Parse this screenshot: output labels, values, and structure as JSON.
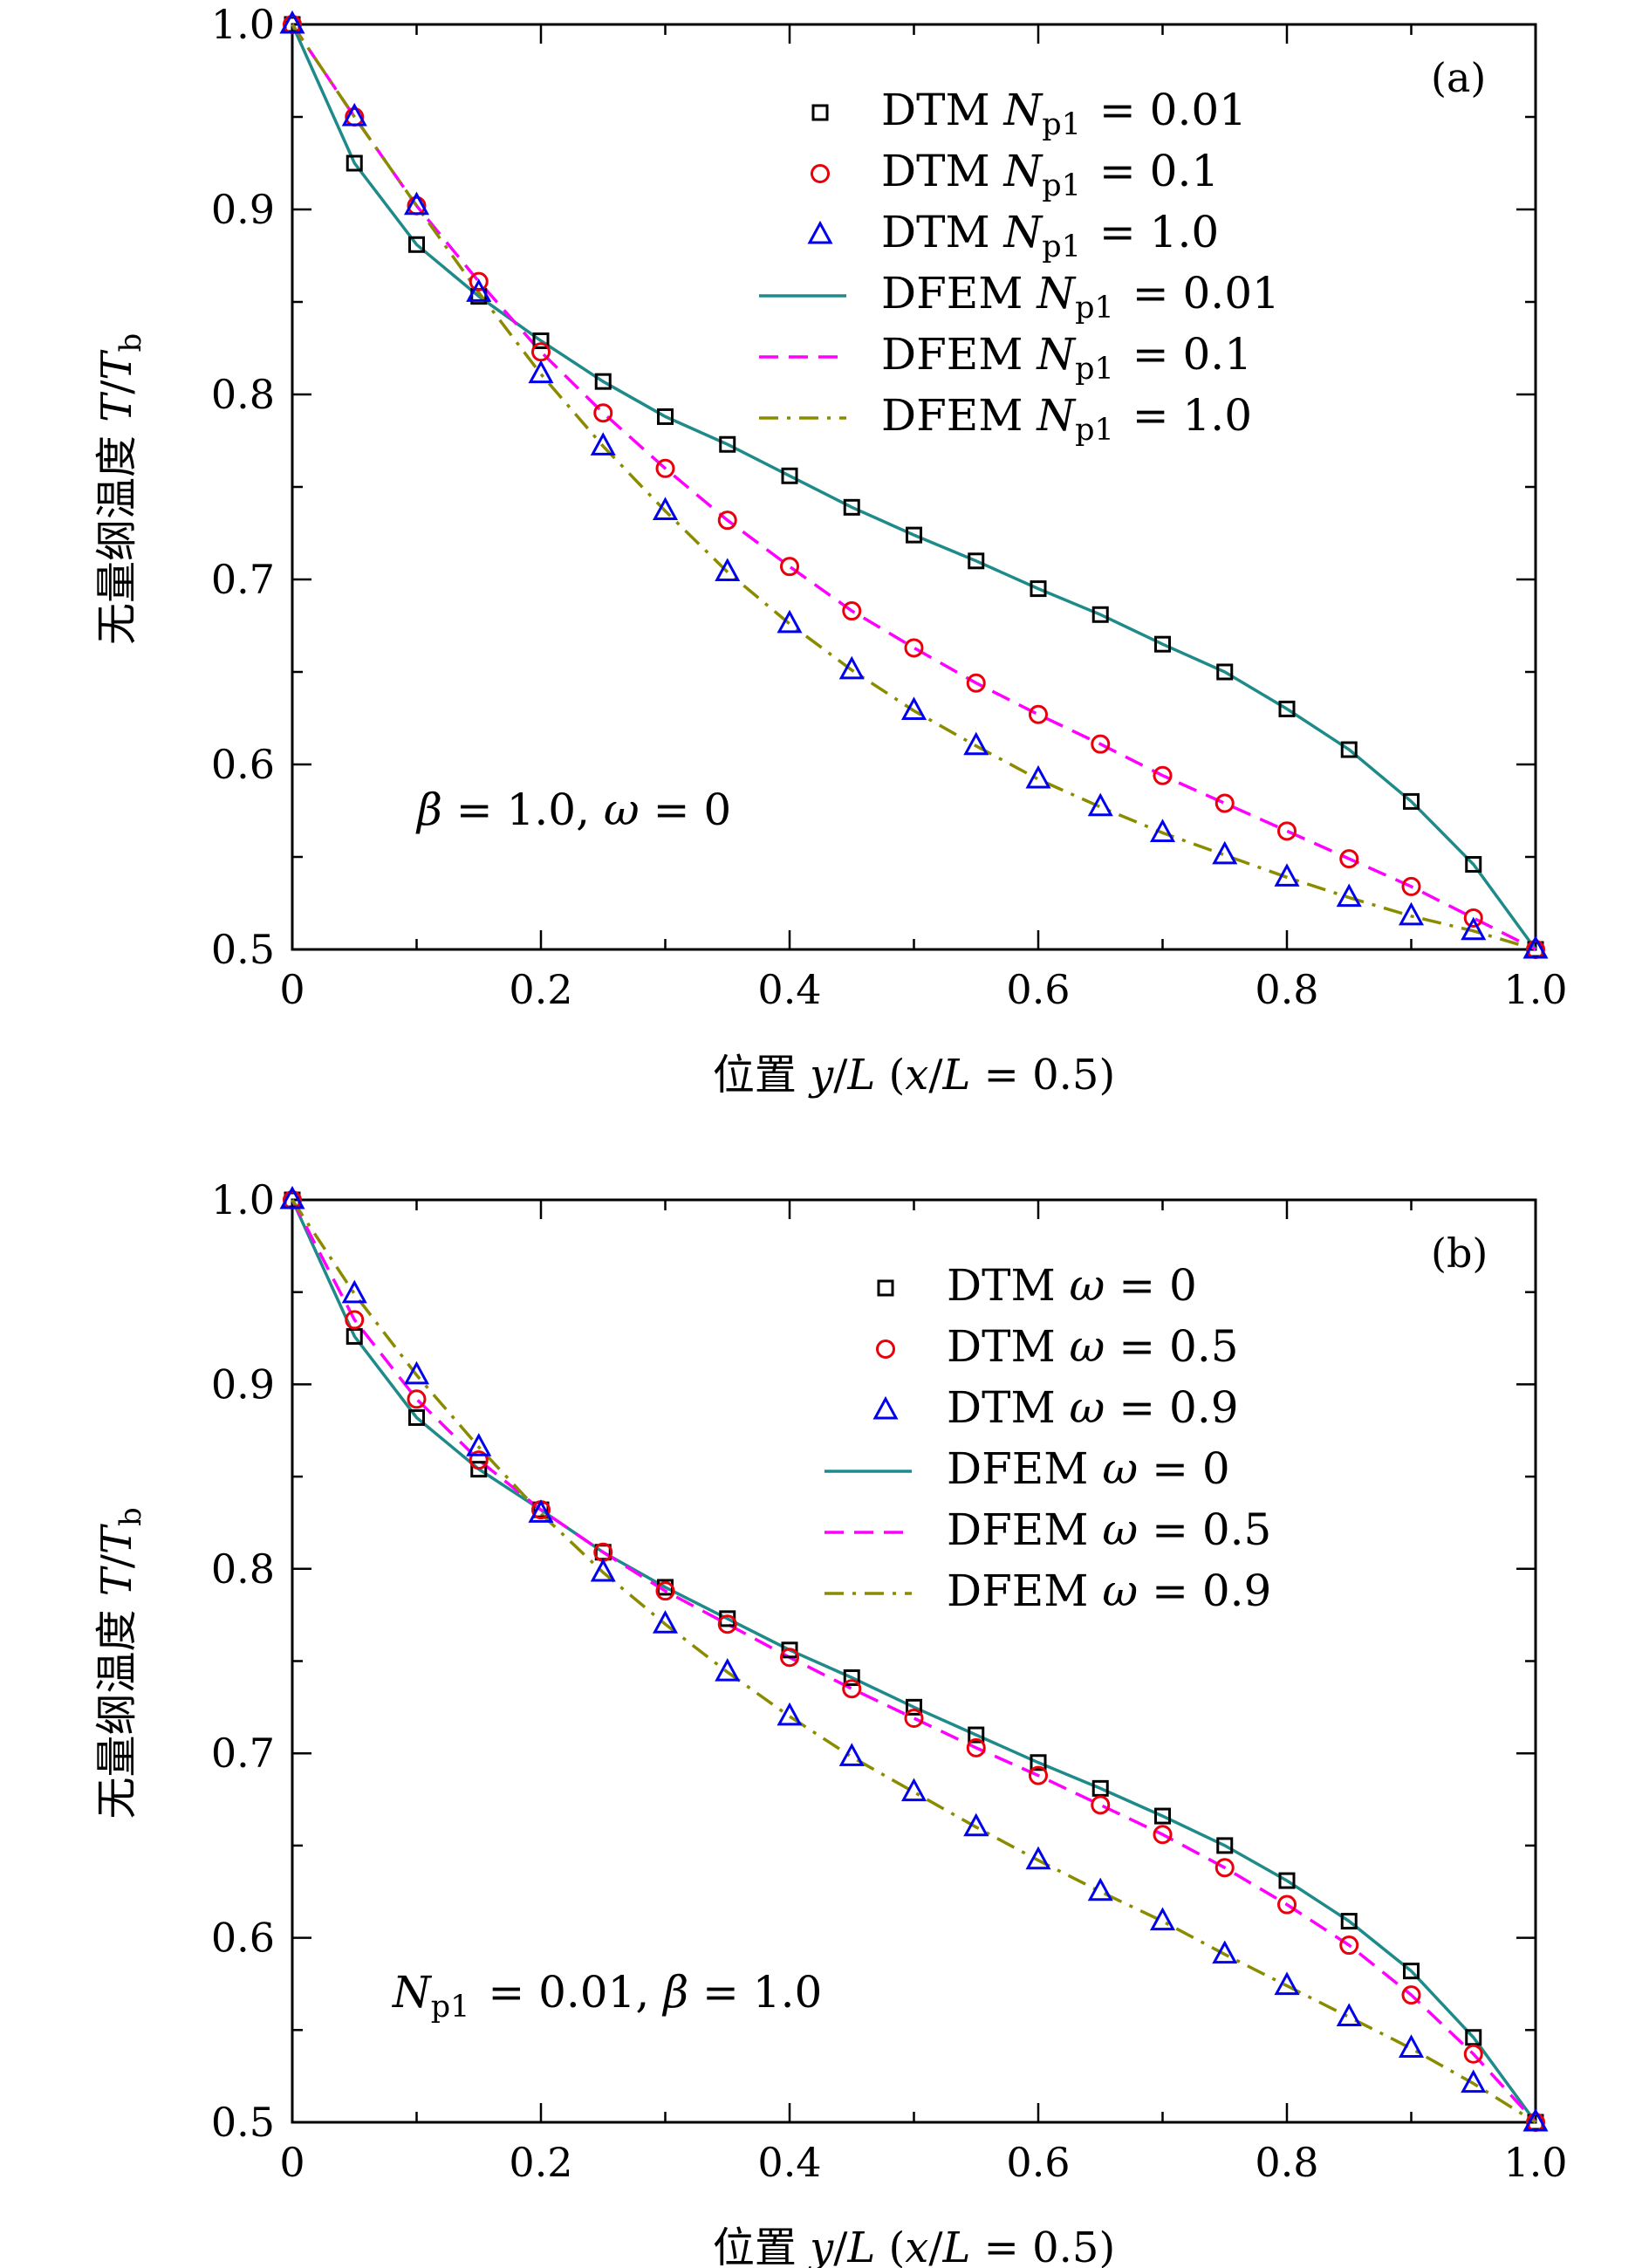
{
  "chart_data": [
    {
      "type": "line",
      "panel_label": "(a)",
      "xlabel": "位置 y/L (x/L = 0.5)",
      "ylabel": "无量纲温度 T/T_b",
      "xlim": [
        0,
        1.0
      ],
      "ylim": [
        0.5,
        1.0
      ],
      "xticks": [
        "0",
        "0.2",
        "0.4",
        "0.6",
        "0.8",
        "1.0"
      ],
      "yticks": [
        "0.5",
        "0.6",
        "0.7",
        "0.8",
        "0.9",
        "1.0"
      ],
      "annotation": "β = 1.0, ω = 0",
      "legend_position": "top-right",
      "series": [
        {
          "name": "DTM N_p1 = 0.01",
          "style": "marker",
          "marker": "square",
          "color": "#000000",
          "x": [
            0,
            0.05,
            0.1,
            0.15,
            0.2,
            0.25,
            0.3,
            0.35,
            0.4,
            0.45,
            0.5,
            0.55,
            0.6,
            0.65,
            0.7,
            0.75,
            0.8,
            0.85,
            0.9,
            0.95,
            1.0
          ],
          "y": [
            1.0,
            0.925,
            0.881,
            0.853,
            0.829,
            0.807,
            0.788,
            0.773,
            0.756,
            0.739,
            0.724,
            0.71,
            0.695,
            0.681,
            0.665,
            0.65,
            0.63,
            0.608,
            0.58,
            0.546,
            0.5
          ]
        },
        {
          "name": "DTM N_p1 = 0.1",
          "style": "marker",
          "marker": "circle",
          "color": "#e8000b",
          "x": [
            0,
            0.05,
            0.1,
            0.15,
            0.2,
            0.25,
            0.3,
            0.35,
            0.4,
            0.45,
            0.5,
            0.55,
            0.6,
            0.65,
            0.7,
            0.75,
            0.8,
            0.85,
            0.9,
            0.95,
            1.0
          ],
          "y": [
            1.0,
            0.95,
            0.902,
            0.861,
            0.823,
            0.79,
            0.76,
            0.732,
            0.707,
            0.683,
            0.663,
            0.644,
            0.627,
            0.611,
            0.594,
            0.579,
            0.564,
            0.549,
            0.534,
            0.517,
            0.5
          ]
        },
        {
          "name": "DTM N_p1 = 1.0",
          "style": "marker",
          "marker": "triangle",
          "color": "#0000ee",
          "x": [
            0,
            0.05,
            0.1,
            0.15,
            0.2,
            0.25,
            0.3,
            0.35,
            0.4,
            0.45,
            0.5,
            0.55,
            0.6,
            0.65,
            0.7,
            0.75,
            0.8,
            0.85,
            0.9,
            0.95,
            1.0
          ],
          "y": [
            1.0,
            0.95,
            0.902,
            0.855,
            0.811,
            0.772,
            0.737,
            0.704,
            0.676,
            0.651,
            0.629,
            0.61,
            0.592,
            0.577,
            0.563,
            0.551,
            0.539,
            0.528,
            0.518,
            0.51,
            0.5
          ]
        },
        {
          "name": "DFEM N_p1 = 0.01",
          "style": "solid",
          "color": "#1f8a8a",
          "x": [
            0,
            0.05,
            0.1,
            0.15,
            0.2,
            0.25,
            0.3,
            0.35,
            0.4,
            0.45,
            0.5,
            0.55,
            0.6,
            0.65,
            0.7,
            0.75,
            0.8,
            0.85,
            0.9,
            0.95,
            1.0
          ],
          "y": [
            1.0,
            0.925,
            0.881,
            0.853,
            0.829,
            0.807,
            0.788,
            0.773,
            0.756,
            0.739,
            0.724,
            0.71,
            0.695,
            0.681,
            0.665,
            0.65,
            0.63,
            0.608,
            0.58,
            0.546,
            0.5
          ]
        },
        {
          "name": "DFEM N_p1 = 0.1",
          "style": "dashed",
          "color": "#ff00ff",
          "x": [
            0,
            0.05,
            0.1,
            0.15,
            0.2,
            0.25,
            0.3,
            0.35,
            0.4,
            0.45,
            0.5,
            0.55,
            0.6,
            0.65,
            0.7,
            0.75,
            0.8,
            0.85,
            0.9,
            0.95,
            1.0
          ],
          "y": [
            1.0,
            0.95,
            0.902,
            0.861,
            0.823,
            0.79,
            0.76,
            0.732,
            0.707,
            0.683,
            0.663,
            0.644,
            0.627,
            0.611,
            0.594,
            0.579,
            0.564,
            0.549,
            0.534,
            0.517,
            0.5
          ]
        },
        {
          "name": "DFEM N_p1 = 1.0",
          "style": "dashdot",
          "color": "#8b8b00",
          "x": [
            0,
            0.05,
            0.1,
            0.15,
            0.2,
            0.25,
            0.3,
            0.35,
            0.4,
            0.45,
            0.5,
            0.55,
            0.6,
            0.65,
            0.7,
            0.75,
            0.8,
            0.85,
            0.9,
            0.95,
            1.0
          ],
          "y": [
            1.0,
            0.95,
            0.902,
            0.855,
            0.811,
            0.772,
            0.737,
            0.704,
            0.676,
            0.651,
            0.629,
            0.61,
            0.592,
            0.577,
            0.563,
            0.551,
            0.539,
            0.528,
            0.518,
            0.51,
            0.5
          ]
        }
      ]
    },
    {
      "type": "line",
      "panel_label": "(b)",
      "xlabel": "位置 y/L (x/L = 0.5)",
      "ylabel": "无量纲温度 T/T_b",
      "xlim": [
        0,
        1.0
      ],
      "ylim": [
        0.5,
        1.0
      ],
      "xticks": [
        "0",
        "0.2",
        "0.4",
        "0.6",
        "0.8",
        "1.0"
      ],
      "yticks": [
        "0.5",
        "0.6",
        "0.7",
        "0.8",
        "0.9",
        "1.0"
      ],
      "annotation": "N_p1 = 0.01, β = 1.0",
      "legend_position": "top-right",
      "series": [
        {
          "name": "DTM ω = 0",
          "style": "marker",
          "marker": "square",
          "color": "#000000",
          "x": [
            0,
            0.05,
            0.1,
            0.15,
            0.2,
            0.25,
            0.3,
            0.35,
            0.4,
            0.45,
            0.5,
            0.55,
            0.6,
            0.65,
            0.7,
            0.75,
            0.8,
            0.85,
            0.9,
            0.95,
            1.0
          ],
          "y": [
            1.0,
            0.926,
            0.882,
            0.854,
            0.832,
            0.809,
            0.79,
            0.773,
            0.756,
            0.741,
            0.725,
            0.71,
            0.695,
            0.681,
            0.666,
            0.65,
            0.631,
            0.609,
            0.582,
            0.546,
            0.5
          ]
        },
        {
          "name": "DTM ω = 0.5",
          "style": "marker",
          "marker": "circle",
          "color": "#e8000b",
          "x": [
            0,
            0.05,
            0.1,
            0.15,
            0.2,
            0.25,
            0.3,
            0.35,
            0.4,
            0.45,
            0.5,
            0.55,
            0.6,
            0.65,
            0.7,
            0.75,
            0.8,
            0.85,
            0.9,
            0.95,
            1.0
          ],
          "y": [
            1.0,
            0.935,
            0.892,
            0.859,
            0.832,
            0.809,
            0.788,
            0.77,
            0.752,
            0.735,
            0.719,
            0.703,
            0.688,
            0.672,
            0.656,
            0.638,
            0.618,
            0.596,
            0.569,
            0.537,
            0.5
          ]
        },
        {
          "name": "DTM ω = 0.9",
          "style": "marker",
          "marker": "triangle",
          "color": "#0000ee",
          "x": [
            0,
            0.05,
            0.1,
            0.15,
            0.2,
            0.25,
            0.3,
            0.35,
            0.4,
            0.45,
            0.5,
            0.55,
            0.6,
            0.65,
            0.7,
            0.75,
            0.8,
            0.85,
            0.9,
            0.95,
            1.0
          ],
          "y": [
            1.0,
            0.949,
            0.905,
            0.866,
            0.83,
            0.798,
            0.77,
            0.744,
            0.72,
            0.698,
            0.679,
            0.66,
            0.642,
            0.625,
            0.609,
            0.591,
            0.574,
            0.557,
            0.54,
            0.521,
            0.5
          ]
        },
        {
          "name": "DFEM ω = 0",
          "style": "solid",
          "color": "#1f8a8a",
          "x": [
            0,
            0.05,
            0.1,
            0.15,
            0.2,
            0.25,
            0.3,
            0.35,
            0.4,
            0.45,
            0.5,
            0.55,
            0.6,
            0.65,
            0.7,
            0.75,
            0.8,
            0.85,
            0.9,
            0.95,
            1.0
          ],
          "y": [
            1.0,
            0.926,
            0.882,
            0.854,
            0.832,
            0.809,
            0.79,
            0.773,
            0.756,
            0.741,
            0.725,
            0.71,
            0.695,
            0.681,
            0.666,
            0.65,
            0.631,
            0.609,
            0.582,
            0.546,
            0.5
          ]
        },
        {
          "name": "DFEM ω = 0.5",
          "style": "dashed",
          "color": "#ff00ff",
          "x": [
            0,
            0.05,
            0.1,
            0.15,
            0.2,
            0.25,
            0.3,
            0.35,
            0.4,
            0.45,
            0.5,
            0.55,
            0.6,
            0.65,
            0.7,
            0.75,
            0.8,
            0.85,
            0.9,
            0.95,
            1.0
          ],
          "y": [
            1.0,
            0.935,
            0.892,
            0.859,
            0.832,
            0.809,
            0.788,
            0.77,
            0.752,
            0.735,
            0.719,
            0.703,
            0.688,
            0.672,
            0.656,
            0.638,
            0.618,
            0.596,
            0.569,
            0.537,
            0.5
          ]
        },
        {
          "name": "DFEM ω = 0.9",
          "style": "dashdot",
          "color": "#8b8b00",
          "x": [
            0,
            0.05,
            0.1,
            0.15,
            0.2,
            0.25,
            0.3,
            0.35,
            0.4,
            0.45,
            0.5,
            0.55,
            0.6,
            0.65,
            0.7,
            0.75,
            0.8,
            0.85,
            0.9,
            0.95,
            1.0
          ],
          "y": [
            1.0,
            0.949,
            0.905,
            0.866,
            0.83,
            0.798,
            0.77,
            0.744,
            0.72,
            0.698,
            0.679,
            0.66,
            0.642,
            0.625,
            0.609,
            0.591,
            0.574,
            0.557,
            0.54,
            0.521,
            0.5
          ]
        }
      ]
    }
  ]
}
